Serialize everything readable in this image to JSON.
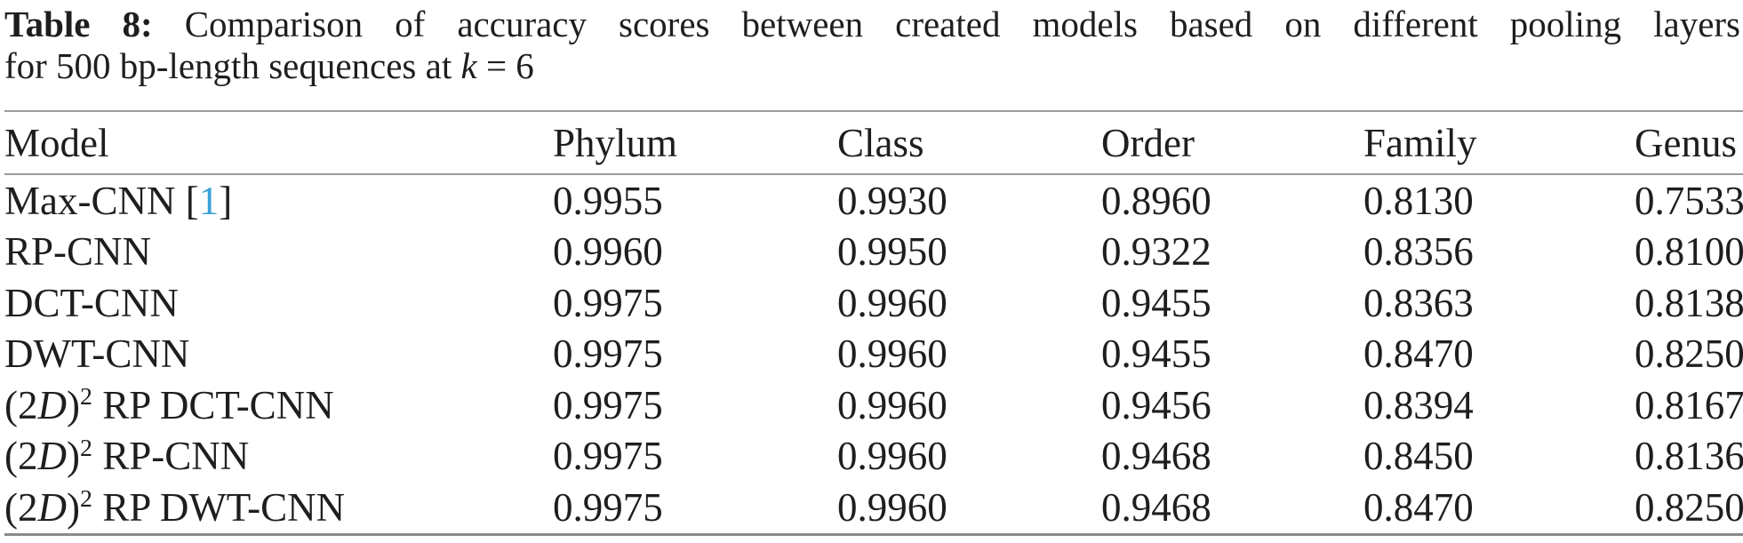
{
  "caption": {
    "label": "Table 8:",
    "line1_rest": " Comparison of accuracy scores between created models based on different pooling layers",
    "line2_prefix": "for 500 bp-length sequences at ",
    "line2_var": "k",
    "line2_suffix": " = 6"
  },
  "colors": {
    "citation_blue": "#3aa0d8",
    "rule_gray": "#9b9b9b",
    "text": "#1e1e1e"
  },
  "table": {
    "columns": [
      "Model",
      "Phylum",
      "Class",
      "Order",
      "Family",
      "Genus"
    ],
    "rows": [
      {
        "model": [
          {
            "t": "Max-CNN "
          },
          {
            "t": "["
          },
          {
            "t": "1",
            "style": "cite"
          },
          {
            "t": "]"
          }
        ],
        "values": [
          "0.9955",
          "0.9930",
          "0.8960",
          "0.8130",
          "0.7533"
        ]
      },
      {
        "model": [
          {
            "t": "RP-CNN"
          }
        ],
        "values": [
          "0.9960",
          "0.9950",
          "0.9322",
          "0.8356",
          "0.8100"
        ]
      },
      {
        "model": [
          {
            "t": "DCT-CNN"
          }
        ],
        "values": [
          "0.9975",
          "0.9960",
          "0.9455",
          "0.8363",
          "0.8138"
        ]
      },
      {
        "model": [
          {
            "t": "DWT-CNN"
          }
        ],
        "values": [
          "0.9975",
          "0.9960",
          "0.9455",
          "0.8470",
          "0.8250"
        ]
      },
      {
        "model": [
          {
            "t": "(2"
          },
          {
            "t": "D",
            "style": "italic"
          },
          {
            "t": ")"
          },
          {
            "t": "2",
            "style": "sup"
          },
          {
            "t": " RP DCT-CNN"
          }
        ],
        "values": [
          "0.9975",
          "0.9960",
          "0.9456",
          "0.8394",
          "0.8167"
        ]
      },
      {
        "model": [
          {
            "t": "(2"
          },
          {
            "t": "D",
            "style": "italic"
          },
          {
            "t": ")"
          },
          {
            "t": "2",
            "style": "sup"
          },
          {
            "t": " RP-CNN"
          }
        ],
        "values": [
          "0.9975",
          "0.9960",
          "0.9468",
          "0.8450",
          "0.8136"
        ]
      },
      {
        "model": [
          {
            "t": "(2"
          },
          {
            "t": "D",
            "style": "italic"
          },
          {
            "t": ")"
          },
          {
            "t": "2",
            "style": "sup"
          },
          {
            "t": " RP DWT-CNN"
          }
        ],
        "values": [
          "0.9975",
          "0.9960",
          "0.9468",
          "0.8470",
          "0.8250"
        ]
      }
    ]
  }
}
